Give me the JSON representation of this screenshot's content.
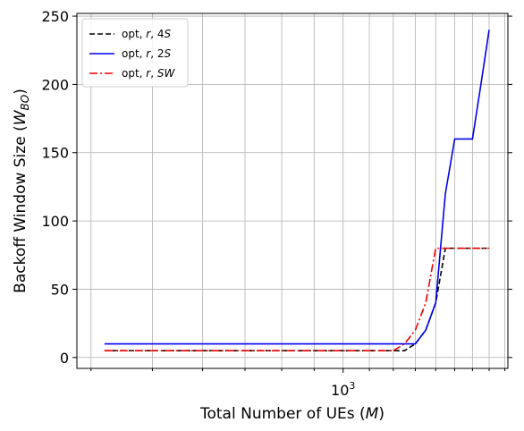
{
  "chart_data": {
    "type": "line",
    "xscale": "log",
    "xlim": [
      380,
      1820
    ],
    "ylim": [
      -8,
      252
    ],
    "grid": true,
    "legend_position": "top-left",
    "xlabel": "Total Number of UEs (M)",
    "xlabel_parts": [
      "Total Number of UEs (",
      "M",
      ")"
    ],
    "ylabel": "Backoff Window Size (W_BO)",
    "ylabel_parts": [
      "Backoff Window Size (",
      "W",
      "BO",
      ")"
    ],
    "y_ticks": [
      0,
      50,
      100,
      150,
      200,
      250
    ],
    "y_tick_labels": [
      "0",
      "50",
      "100",
      "150",
      "200",
      "250"
    ],
    "x_major_ticks": [
      1000
    ],
    "x_major_tick_labels": [
      {
        "base": "10",
        "exp": "3"
      }
    ],
    "x_minor_ticks": [
      400,
      500,
      600,
      700,
      800,
      900,
      1100,
      1200,
      1300,
      1400,
      1500,
      1600,
      1700,
      1800
    ],
    "x_minor_labels_visible": false,
    "series": [
      {
        "name": "opt, r, 4S",
        "name_parts": [
          "opt, ",
          "r",
          ", 4",
          "S"
        ],
        "color": "#000000",
        "dash": "dashed",
        "x": [
          420,
          450,
          500,
          550,
          600,
          650,
          700,
          750,
          800,
          850,
          900,
          950,
          1000,
          1050,
          1100,
          1150,
          1200,
          1250,
          1300,
          1350,
          1400,
          1450,
          1500,
          1550,
          1600,
          1650,
          1700
        ],
        "y": [
          5,
          5,
          5,
          5,
          5,
          5,
          5,
          5,
          5,
          5,
          5,
          5,
          5,
          5,
          5,
          5,
          5,
          5,
          10,
          20,
          40,
          80,
          80,
          80,
          80,
          80,
          80
        ]
      },
      {
        "name": "opt, r, 2S",
        "name_parts": [
          "opt, ",
          "r",
          ", 2",
          "S"
        ],
        "color": "#0000ee",
        "dash": "solid",
        "x": [
          420,
          1300,
          1350,
          1400,
          1450,
          1500,
          1550,
          1600,
          1650,
          1700
        ],
        "y": [
          10,
          10,
          20,
          40,
          120,
          160,
          160,
          160,
          200,
          240
        ]
      },
      {
        "name": "opt, r, SW",
        "name_parts": [
          "opt, ",
          "r",
          ", ",
          "SW"
        ],
        "color": "#ee0000",
        "dash": "dashdot",
        "x": [
          420,
          1150,
          1200,
          1250,
          1300,
          1350,
          1400,
          1450,
          1500,
          1550,
          1600,
          1650,
          1700
        ],
        "y": [
          5,
          5,
          5,
          10,
          20,
          40,
          80,
          80,
          80,
          80,
          80,
          80,
          80
        ]
      }
    ]
  }
}
